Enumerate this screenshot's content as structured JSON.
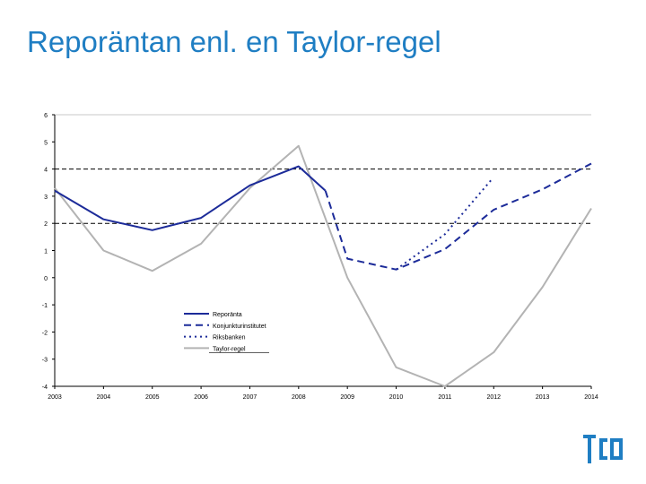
{
  "slide": {
    "title": "Reporäntan enl. en Taylor-regel"
  },
  "chart_data": {
    "type": "line",
    "title": "",
    "xlabel": "",
    "ylabel": "",
    "categories": [
      "2003",
      "2004",
      "2005",
      "2006",
      "2007",
      "2008",
      "2009",
      "2010",
      "2011",
      "2012",
      "2013",
      "2014"
    ],
    "ylim": [
      -4,
      6
    ],
    "yticks": [
      6,
      5,
      4,
      3,
      2,
      1,
      0,
      -1,
      -2,
      -3,
      -4
    ],
    "grid": false,
    "reference_lines": [
      4,
      2
    ],
    "legend_position": "lower-center",
    "series": [
      {
        "name": "Reporänta",
        "color": "#1c2b99",
        "style": "solid",
        "width": 2,
        "x": [
          0,
          1,
          2,
          3,
          4,
          5,
          5.55
        ],
        "values": [
          3.2,
          2.15,
          1.75,
          2.2,
          3.4,
          4.1,
          3.2
        ]
      },
      {
        "name": "Konjunkturinstitutet",
        "color": "#1c2b99",
        "style": "dashed",
        "width": 2,
        "x": [
          5.55,
          6,
          7,
          8,
          9,
          10,
          11
        ],
        "values": [
          3.2,
          0.7,
          0.3,
          1.05,
          2.5,
          3.25,
          4.2
        ]
      },
      {
        "name": "Riksbanken",
        "color": "#1c2b99",
        "style": "dotted",
        "width": 2,
        "x": [
          7,
          8,
          8.95
        ],
        "values": [
          0.3,
          1.6,
          3.6
        ]
      },
      {
        "name": "Taylor-regel",
        "color": "#b3b3b3",
        "style": "solid",
        "width": 2,
        "x": [
          0,
          1,
          2,
          3,
          4,
          5,
          6,
          7,
          8,
          9,
          10,
          11
        ],
        "values": [
          3.3,
          1.0,
          0.25,
          1.25,
          3.3,
          4.85,
          0.0,
          -3.3,
          -4.0,
          -2.75,
          -0.35,
          2.55
        ]
      }
    ]
  }
}
